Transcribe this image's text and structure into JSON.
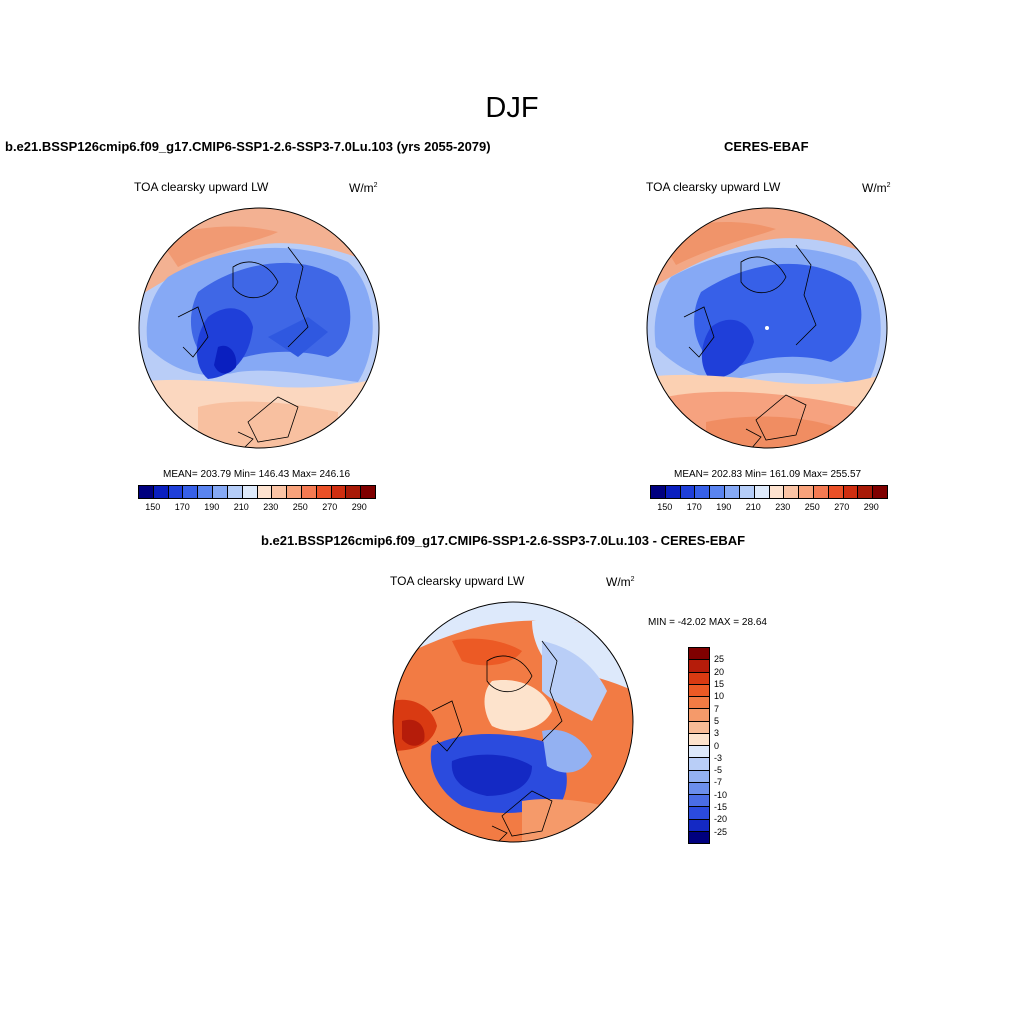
{
  "figure": {
    "season": "DJF"
  },
  "panels": [
    {
      "title": "b.e21.BSSP126cmip6.f09_g17.CMIP6-SSP1-2.6-SSP3-7.0Lu.103 (yrs 2055-2079)",
      "variable": "TOA clearsky upward LW",
      "units_base": "W/m",
      "units_exp": "2",
      "stats": "MEAN= 203.79  Min= 146.43  Max= 246.16",
      "colorbar_ticks": [
        "150",
        "170",
        "190",
        "210",
        "230",
        "250",
        "270",
        "290"
      ]
    },
    {
      "title": "CERES-EBAF",
      "variable": "TOA clearsky upward LW",
      "units_base": "W/m",
      "units_exp": "2",
      "stats": "MEAN= 202.83  Min= 161.09  Max= 255.57",
      "colorbar_ticks": [
        "150",
        "170",
        "190",
        "210",
        "230",
        "250",
        "270",
        "290"
      ]
    },
    {
      "title": "b.e21.BSSP126cmip6.f09_g17.CMIP6-SSP1-2.6-SSP3-7.0Lu.103 - CERES-EBAF",
      "variable": "TOA clearsky upward LW",
      "units_base": "W/m",
      "units_exp": "2",
      "stats": "MIN = -42.02 MAX =  28.64",
      "colorbar_ticks": [
        "25",
        "20",
        "15",
        "10",
        "7",
        "5",
        "3",
        "0",
        "-3",
        "-5",
        "-7",
        "-10",
        "-15",
        "-20",
        "-25"
      ]
    }
  ],
  "colors": {
    "abs_scale": [
      "#00007f",
      "#0a1fbf",
      "#1f3fd9",
      "#3760e8",
      "#5a84f0",
      "#86a9f5",
      "#b5cdf8",
      "#deeafb",
      "#fde2cf",
      "#fbc4a5",
      "#f8a27b",
      "#f47a52",
      "#ea5027",
      "#cf2e10",
      "#a81a07",
      "#7f0000"
    ],
    "diff_scale": [
      "#7f0000",
      "#b51c0a",
      "#d93a12",
      "#ec5a25",
      "#f27b44",
      "#f59a6a",
      "#f8bb95",
      "#fde3cc",
      "#dde9fb",
      "#b9cef7",
      "#93b1f2",
      "#6b8eec",
      "#4a6de6",
      "#2b4bde",
      "#1429c4",
      "#00007f"
    ],
    "ocean_low": "#2f58e0",
    "ocean_mid": "#5d85ef",
    "warm": "#f3a886"
  }
}
